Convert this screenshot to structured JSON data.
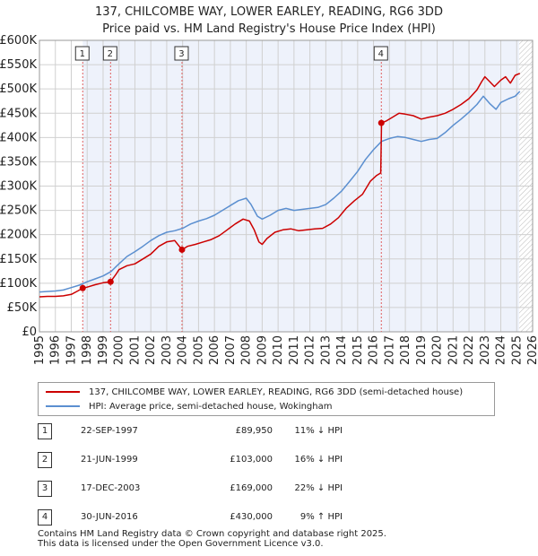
{
  "title_line1": "137, CHILCOMBE WAY, LOWER EARLEY, READING, RG6 3DD",
  "title_line2": "Price paid vs. HM Land Registry's House Price Index (HPI)",
  "colors": {
    "property_line": "#cc0000",
    "hpi_line": "#5b8fd0",
    "shade": "#eef2fb",
    "marker_line": "#e06060",
    "grid": "#d0d0d0"
  },
  "chart_data": {
    "type": "line",
    "title": "137, CHILCOMBE WAY, LOWER EARLEY, READING, RG6 3DD",
    "subtitle": "Price paid vs. HM Land Registry's House Price Index (HPI)",
    "xlabel": "",
    "ylabel": "",
    "xlim": [
      1995,
      2026
    ],
    "ylim": [
      0,
      600000
    ],
    "x_ticks": [
      1995,
      1996,
      1997,
      1998,
      1999,
      2000,
      2001,
      2002,
      2003,
      2004,
      2005,
      2006,
      2007,
      2008,
      2009,
      2010,
      2011,
      2012,
      2013,
      2014,
      2015,
      2016,
      2017,
      2018,
      2019,
      2020,
      2021,
      2022,
      2023,
      2024,
      2025,
      2026
    ],
    "y_ticks": [
      0,
      50000,
      100000,
      150000,
      200000,
      250000,
      300000,
      350000,
      400000,
      450000,
      500000,
      550000,
      600000
    ],
    "y_tick_labels": [
      "£0",
      "£50K",
      "£100K",
      "£150K",
      "£200K",
      "£250K",
      "£300K",
      "£350K",
      "£400K",
      "£450K",
      "£500K",
      "£550K",
      "£600K"
    ],
    "grid": true,
    "legend_position": "below",
    "hatched_region_start": 2025.15,
    "series": [
      {
        "name": "137, CHILCOMBE WAY, LOWER EARLEY, READING, RG6 3DD (semi-detached house)",
        "x": [
          1995.0,
          1995.5,
          1996.0,
          1996.5,
          1997.0,
          1997.4,
          1997.72,
          1998.0,
          1998.5,
          1999.0,
          1999.47,
          1999.8,
          2000.0,
          2000.5,
          2001.0,
          2001.5,
          2002.0,
          2002.5,
          2003.0,
          2003.5,
          2003.96,
          2004.3,
          2004.8,
          2005.3,
          2005.8,
          2006.3,
          2006.8,
          2007.3,
          2007.8,
          2008.2,
          2008.5,
          2008.8,
          2009.0,
          2009.3,
          2009.8,
          2010.3,
          2010.8,
          2011.3,
          2011.8,
          2012.3,
          2012.8,
          2013.3,
          2013.8,
          2014.3,
          2014.8,
          2015.3,
          2015.8,
          2016.2,
          2016.45,
          2016.5,
          2016.8,
          2017.2,
          2017.6,
          2018.0,
          2018.5,
          2019.0,
          2019.5,
          2020.0,
          2020.5,
          2021.0,
          2021.5,
          2022.0,
          2022.5,
          2022.8,
          2023.0,
          2023.3,
          2023.6,
          2024.0,
          2024.3,
          2024.6,
          2024.9,
          2025.2
        ],
        "values": [
          72000,
          73000,
          73000,
          74000,
          77000,
          84000,
          89950,
          92000,
          97000,
          101000,
          103000,
          118000,
          128000,
          136000,
          140000,
          150000,
          160000,
          176000,
          185000,
          188000,
          169000,
          176000,
          180000,
          185000,
          190000,
          198000,
          210000,
          222000,
          232000,
          228000,
          210000,
          185000,
          180000,
          192000,
          205000,
          210000,
          212000,
          208000,
          210000,
          212000,
          213000,
          222000,
          235000,
          255000,
          270000,
          283000,
          310000,
          322000,
          327000,
          430000,
          434000,
          442000,
          450000,
          448000,
          445000,
          438000,
          442000,
          445000,
          450000,
          458000,
          468000,
          480000,
          498000,
          515000,
          525000,
          515000,
          505000,
          518000,
          525000,
          512000,
          528000,
          532000
        ]
      },
      {
        "name": "HPI: Average price, semi-detached house, Wokingham",
        "x": [
          1995.0,
          1995.5,
          1996.0,
          1996.5,
          1997.0,
          1997.5,
          1998.0,
          1998.5,
          1999.0,
          1999.5,
          2000.0,
          2000.5,
          2001.0,
          2001.5,
          2002.0,
          2002.5,
          2003.0,
          2003.5,
          2004.0,
          2004.5,
          2005.0,
          2005.5,
          2006.0,
          2006.5,
          2007.0,
          2007.5,
          2008.0,
          2008.3,
          2008.7,
          2009.0,
          2009.5,
          2010.0,
          2010.5,
          2011.0,
          2011.5,
          2012.0,
          2012.5,
          2013.0,
          2013.5,
          2014.0,
          2014.5,
          2015.0,
          2015.5,
          2016.0,
          2016.5,
          2017.0,
          2017.5,
          2018.0,
          2018.5,
          2019.0,
          2019.5,
          2020.0,
          2020.5,
          2021.0,
          2021.5,
          2022.0,
          2022.5,
          2022.9,
          2023.3,
          2023.7,
          2024.0,
          2024.5,
          2024.9,
          2025.2
        ],
        "values": [
          82000,
          83000,
          84000,
          86000,
          91000,
          96000,
          103000,
          109000,
          115000,
          124000,
          140000,
          155000,
          165000,
          176000,
          188000,
          198000,
          205000,
          208000,
          213000,
          222000,
          228000,
          233000,
          240000,
          250000,
          260000,
          270000,
          275000,
          262000,
          238000,
          232000,
          240000,
          250000,
          254000,
          250000,
          252000,
          254000,
          256000,
          262000,
          275000,
          290000,
          310000,
          330000,
          355000,
          375000,
          392000,
          398000,
          402000,
          400000,
          396000,
          392000,
          396000,
          398000,
          410000,
          425000,
          438000,
          452000,
          468000,
          485000,
          470000,
          458000,
          472000,
          480000,
          485000,
          495000
        ]
      }
    ],
    "transactions": [
      {
        "num": "1",
        "x": 1997.72,
        "value": 89950
      },
      {
        "num": "2",
        "x": 1999.47,
        "value": 103000
      },
      {
        "num": "3",
        "x": 2003.96,
        "value": 169000
      },
      {
        "num": "4",
        "x": 2016.49,
        "value": 430000
      }
    ]
  },
  "legend": {
    "property": "137, CHILCOMBE WAY, LOWER EARLEY, READING, RG6 3DD (semi-detached house)",
    "hpi": "HPI: Average price, semi-detached house, Wokingham"
  },
  "table": [
    {
      "num": "1",
      "date": "22-SEP-1997",
      "price": "£89,950",
      "hpi": "11% ↓ HPI"
    },
    {
      "num": "2",
      "date": "21-JUN-1999",
      "price": "£103,000",
      "hpi": "16% ↓ HPI"
    },
    {
      "num": "3",
      "date": "17-DEC-2003",
      "price": "£169,000",
      "hpi": "22% ↓ HPI"
    },
    {
      "num": "4",
      "date": "30-JUN-2016",
      "price": "£430,000",
      "hpi": "9% ↑ HPI"
    }
  ],
  "footer": {
    "line1": "Contains HM Land Registry data © Crown copyright and database right 2025.",
    "line2": "This data is licensed under the Open Government Licence v3.0."
  }
}
